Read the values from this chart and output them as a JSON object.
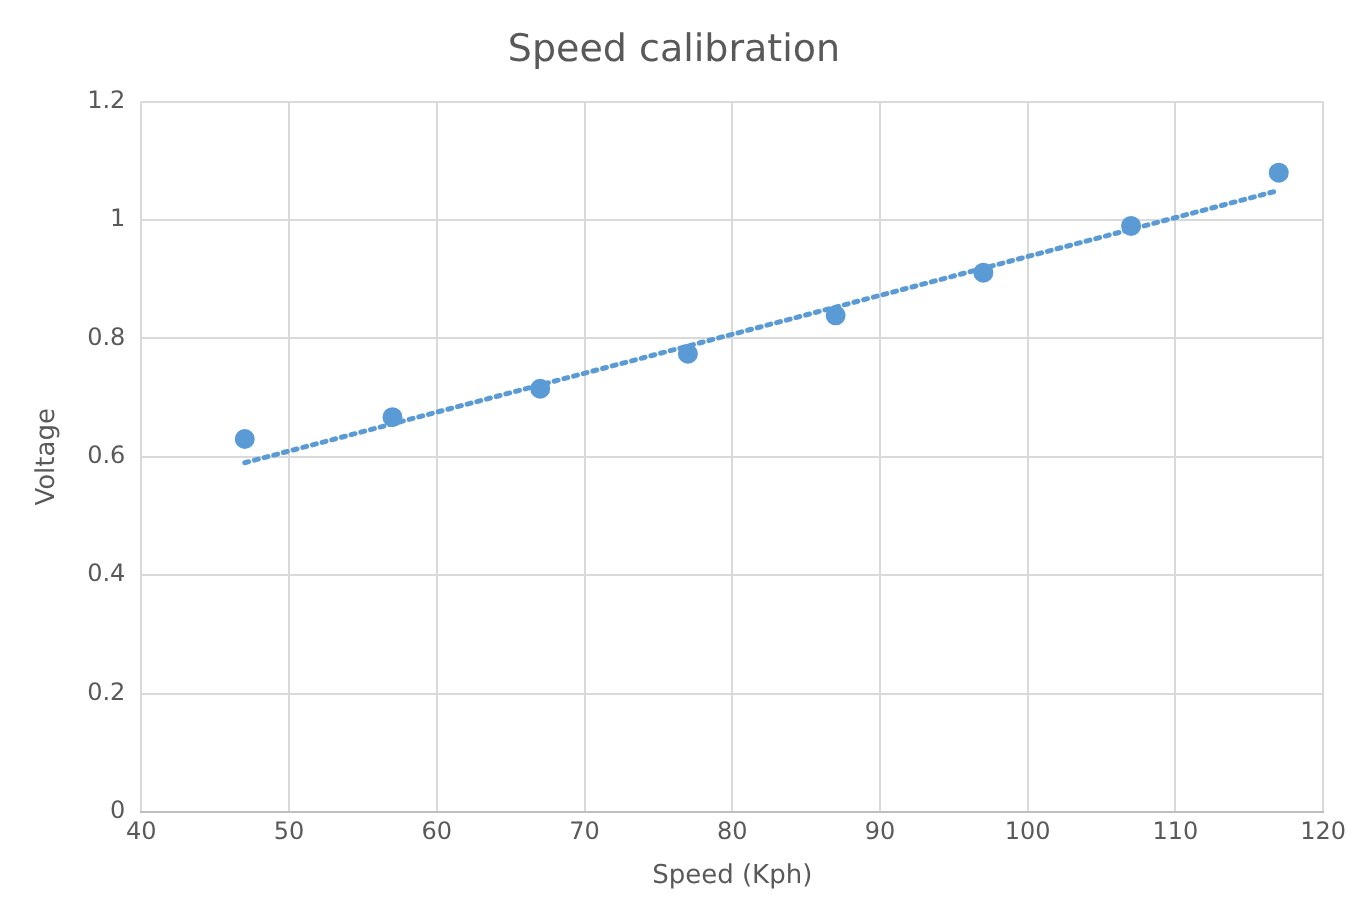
{
  "chart_data": {
    "type": "scatter",
    "title": "Speed calibration",
    "xlabel": "Speed (Kph)",
    "ylabel": "Voltage",
    "xlim": [
      40,
      120
    ],
    "xticks": [
      40,
      50,
      60,
      70,
      80,
      90,
      100,
      110,
      120
    ],
    "ylim": [
      0,
      1.2
    ],
    "yticks": [
      0,
      0.2,
      0.4,
      0.6,
      0.8,
      1,
      1.2
    ],
    "grid": true,
    "legend": false,
    "series": [
      {
        "type": "scatter",
        "color": "#5b9bd5",
        "marker": "circle",
        "x": [
          47,
          57,
          67,
          77,
          87,
          97,
          107,
          117
        ],
        "values": [
          0.63,
          0.667,
          0.715,
          0.774,
          0.839,
          0.911,
          0.99,
          1.08
        ]
      },
      {
        "type": "line",
        "color": "#5b9bd5",
        "marker": "none",
        "line_style": "dotted",
        "x": [
          47,
          117
        ],
        "values": [
          0.59,
          1.05
        ]
      }
    ]
  }
}
